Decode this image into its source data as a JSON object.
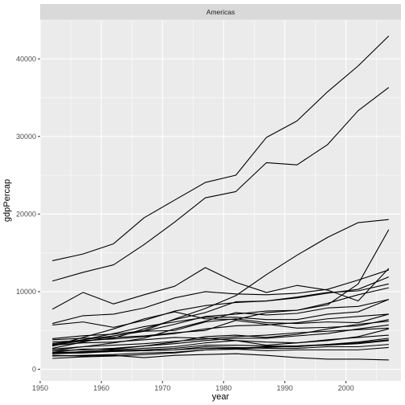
{
  "chart_data": {
    "type": "line",
    "title": "",
    "facet_label": "Americas",
    "xlabel": "year",
    "ylabel": "gdpPercap",
    "xlim": [
      1950,
      2009
    ],
    "ylim": [
      -1500,
      45000
    ],
    "x_ticks": [
      1950,
      1960,
      1970,
      1980,
      1990,
      2000
    ],
    "y_ticks": [
      0,
      10000,
      20000,
      30000,
      40000
    ],
    "grid": true,
    "legend": "none",
    "colors": {
      "panel_background": "#ebebeb",
      "grid_major": "#ffffff",
      "strip_background": "#d9d9d9",
      "line": "#000000"
    },
    "x": [
      1952,
      1957,
      1962,
      1967,
      1972,
      1977,
      1982,
      1987,
      1992,
      1997,
      2002,
      2007
    ],
    "series": [
      {
        "values": [
          13990,
          14847,
          16173,
          19530,
          21806,
          24073,
          25010,
          29884,
          32004,
          35767,
          39097,
          42952
        ]
      },
      {
        "values": [
          11367,
          12490,
          13462,
          16077,
          18971,
          22091,
          22899,
          26627,
          26343,
          28955,
          33329,
          36319
        ]
      },
      {
        "values": [
          7740,
          9900,
          8420,
          9600,
          10700,
          13100,
          11200,
          9900,
          10800,
          10200,
          8800,
          13000
        ]
      },
      {
        "values": [
          5900,
          6900,
          7100,
          7900,
          9200,
          10000,
          9700,
          9600,
          9800,
          10300,
          11500,
          12800
        ]
      },
      {
        "values": [
          3940,
          4320,
          4520,
          4970,
          6470,
          7830,
          9490,
          12200,
          14700,
          17000,
          18900,
          19300
        ]
      },
      {
        "values": [
          3000,
          4100,
          5200,
          6500,
          7400,
          6500,
          6400,
          7300,
          7600,
          8300,
          11000,
          18000
        ]
      },
      {
        "values": [
          5700,
          6100,
          5400,
          6300,
          7500,
          8200,
          8600,
          8800,
          9200,
          9800,
          10300,
          11900
        ]
      },
      {
        "values": [
          3200,
          3600,
          4000,
          5200,
          6400,
          7300,
          8700,
          8800,
          9300,
          9900,
          10100,
          11000
        ]
      },
      {
        "values": [
          2700,
          3500,
          4300,
          4900,
          5800,
          6800,
          7100,
          7500,
          7600,
          8500,
          9600,
          10500
        ]
      },
      {
        "values": [
          3300,
          3800,
          4600,
          5500,
          6100,
          6700,
          6700,
          6400,
          6400,
          7100,
          7400,
          9000
        ]
      },
      {
        "values": [
          2400,
          2900,
          3400,
          4000,
          5200,
          6200,
          7300,
          7000,
          7200,
          7900,
          8100,
          9000
        ]
      },
      {
        "values": [
          3000,
          3800,
          4300,
          4900,
          5000,
          6100,
          6500,
          6000,
          5900,
          6100,
          6000,
          7100
        ]
      },
      {
        "values": [
          3800,
          4000,
          4100,
          4300,
          4700,
          5000,
          6300,
          5800,
          5300,
          5400,
          5600,
          6400
        ]
      },
      {
        "values": [
          2200,
          2600,
          2600,
          3000,
          3500,
          4200,
          4400,
          4100,
          4500,
          5200,
          5800,
          6200
        ]
      },
      {
        "values": [
          2400,
          2500,
          2700,
          3000,
          3300,
          3700,
          4000,
          4000,
          4300,
          4600,
          5200,
          5700
        ]
      },
      {
        "values": [
          2000,
          2300,
          2500,
          2700,
          2900,
          3400,
          3700,
          3500,
          3400,
          3700,
          4200,
          5200
        ]
      },
      {
        "values": [
          3100,
          3400,
          3500,
          3800,
          4100,
          4000,
          3700,
          3100,
          3400,
          3800,
          4100,
          4400
        ]
      },
      {
        "values": [
          1400,
          1600,
          1700,
          1900,
          2100,
          2500,
          2600,
          2800,
          3000,
          3200,
          3500,
          4000
        ]
      },
      {
        "values": [
          2200,
          2200,
          2400,
          2500,
          2700,
          3100,
          3100,
          3000,
          3000,
          3100,
          3300,
          3700
        ]
      },
      {
        "values": [
          2000,
          2100,
          2300,
          2400,
          2500,
          2900,
          2800,
          2700,
          2700,
          2900,
          2900,
          3200
        ]
      },
      {
        "values": [
          1700,
          1800,
          1900,
          2100,
          2200,
          2500,
          2600,
          2400,
          2500,
          2500,
          2500,
          2800
        ]
      },
      {
        "values": [
          1800,
          1700,
          1800,
          1500,
          1800,
          1900,
          2000,
          1800,
          1500,
          1300,
          1300,
          1200
        ]
      },
      {
        "values": [
          2100,
          2200,
          2300,
          2400,
          2500,
          2700,
          2700,
          2900,
          2900,
          3200,
          3400,
          3800
        ]
      },
      {
        "values": [
          2600,
          2900,
          3100,
          3300,
          3600,
          3900,
          4200,
          4400,
          4700,
          4900,
          5100,
          5300
        ]
      },
      {
        "values": [
          3500,
          3700,
          3900,
          4200,
          4600,
          5200,
          5600,
          5700,
          6000,
          6500,
          6800,
          7100
        ]
      }
    ]
  }
}
